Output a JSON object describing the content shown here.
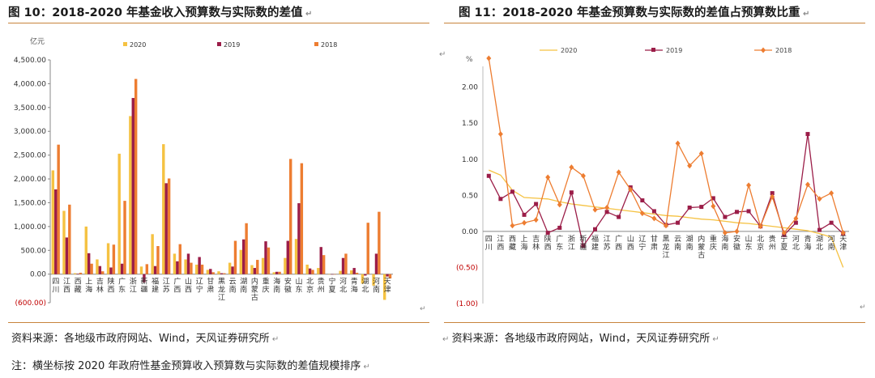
{
  "left": {
    "title": "图 10：2018-2020 年基金收入预算数与实际数的差值",
    "source": "资料来源：各地级市政府网站、Wind，天风证券研究所",
    "note": "注：横坐标按 2020 年政府性基金预算收入预算数与实际数的差值规模排序"
  },
  "right": {
    "title": "图 11：2018-2020 年基金预算数与实际数的差值占预算数比重",
    "source": "资料来源：各地级市政府网站，Wind，天风证券研究所"
  },
  "chart_data": [
    {
      "type": "bar",
      "title": "",
      "unit_label": "亿元",
      "ylim": [
        -600,
        4500
      ],
      "yticks": [
        -600,
        0,
        500,
        1000,
        1500,
        2000,
        2500,
        3000,
        3500,
        4000,
        4500
      ],
      "ytick_labels": [
        "(600.00)",
        "0.00",
        "500.00",
        "1,000.00",
        "1,500.00",
        "2,000.00",
        "2,500.00",
        "3,000.00",
        "3,500.00",
        "4,000.00",
        "4,500.00"
      ],
      "categories": [
        "四川",
        "江西",
        "西藏",
        "上海",
        "吉林",
        "陕西",
        "广东",
        "浙江",
        "新疆",
        "福建",
        "江苏",
        "广西",
        "山西",
        "辽宁",
        "甘肃",
        "黑龙江",
        "云南",
        "湖南",
        "内蒙古",
        "重庆",
        "海南",
        "安徽",
        "山东",
        "北京",
        "贵州",
        "宁夏",
        "河北",
        "青海",
        "湖北",
        "河南",
        "天津"
      ],
      "series": [
        {
          "name": "2020",
          "color": "#f5c242",
          "values": [
            2180,
            1330,
            20,
            1000,
            310,
            650,
            2530,
            3320,
            160,
            840,
            2730,
            430,
            310,
            200,
            90,
            60,
            240,
            510,
            190,
            340,
            40,
            340,
            740,
            200,
            130,
            0,
            70,
            80,
            -200,
            -240,
            -540
          ]
        },
        {
          "name": "2019",
          "color": "#9b1d48",
          "values": [
            1780,
            770,
            10,
            440,
            170,
            140,
            220,
            3700,
            -170,
            170,
            1910,
            270,
            430,
            360,
            110,
            20,
            160,
            730,
            130,
            690,
            50,
            700,
            1490,
            120,
            570,
            0,
            340,
            130,
            -30,
            430,
            -50
          ]
        },
        {
          "name": "2018",
          "color": "#ed7d31",
          "values": [
            2720,
            1460,
            30,
            220,
            60,
            620,
            1540,
            4100,
            210,
            590,
            2010,
            630,
            240,
            200,
            40,
            20,
            700,
            1070,
            300,
            560,
            50,
            2420,
            2330,
            90,
            400,
            0,
            430,
            30,
            1080,
            1310,
            -90
          ]
        }
      ]
    },
    {
      "type": "line",
      "title": "",
      "unit_label": "%",
      "ylim": [
        -1.0,
        2.4
      ],
      "yticks": [
        -1.0,
        -0.5,
        0.0,
        0.5,
        1.0,
        1.5,
        2.0
      ],
      "ytick_labels": [
        "(1.00)",
        "(0.50)",
        "0.00",
        "0.50",
        "1.00",
        "1.50",
        "2.00"
      ],
      "categories": [
        "四川",
        "江西",
        "西藏",
        "上海",
        "吉林",
        "陕西",
        "广东",
        "浙江",
        "新疆",
        "福建",
        "江苏",
        "广西",
        "山西",
        "辽宁",
        "甘肃",
        "黑龙江",
        "云南",
        "湖南",
        "内蒙古",
        "重庆",
        "海南",
        "安徽",
        "山东",
        "北京",
        "贵州",
        "宁夏",
        "河北",
        "青海",
        "湖北",
        "河南",
        "天津"
      ],
      "series": [
        {
          "name": "2020",
          "color": "#f5c242",
          "marker": "none",
          "values": [
            0.85,
            0.78,
            0.57,
            0.47,
            0.46,
            0.45,
            0.41,
            0.38,
            0.36,
            0.34,
            0.32,
            0.3,
            0.28,
            0.26,
            0.24,
            0.22,
            0.21,
            0.19,
            0.17,
            0.16,
            0.14,
            0.12,
            0.11,
            0.09,
            0.07,
            0.05,
            0.03,
            0.01,
            -0.03,
            -0.08,
            -0.5
          ]
        },
        {
          "name": "2019",
          "color": "#9b1d48",
          "marker": "square",
          "values": [
            0.77,
            0.45,
            0.55,
            0.23,
            0.38,
            -0.02,
            0.05,
            0.54,
            -0.2,
            0.03,
            0.27,
            0.2,
            0.61,
            0.43,
            0.28,
            0.09,
            0.12,
            0.33,
            0.34,
            0.46,
            0.2,
            0.27,
            0.28,
            0.07,
            0.53,
            -0.05,
            0.12,
            1.35,
            0.02,
            0.12,
            -0.03
          ]
        },
        {
          "name": "2018",
          "color": "#ed7d31",
          "marker": "diamond",
          "values": [
            2.4,
            1.35,
            0.08,
            0.12,
            0.16,
            0.75,
            0.37,
            0.89,
            0.77,
            0.3,
            0.33,
            0.82,
            0.58,
            0.25,
            0.18,
            0.08,
            1.22,
            0.91,
            1.08,
            0.35,
            -0.02,
            0.0,
            0.64,
            0.07,
            0.48,
            -0.02,
            0.18,
            0.65,
            0.45,
            0.53,
            -0.02
          ]
        }
      ]
    }
  ]
}
